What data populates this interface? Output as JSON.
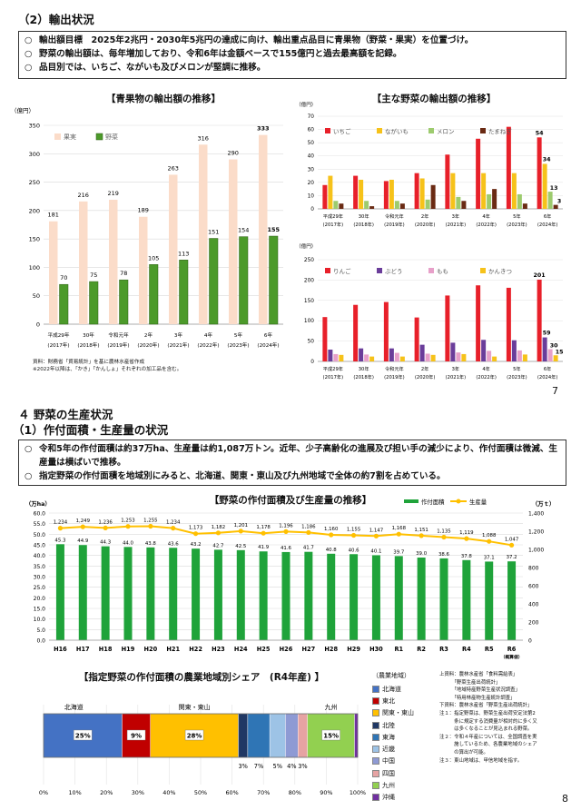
{
  "section2": {
    "title": "（2）輸出状況",
    "bullets": [
      "輸出額目標　2025年2兆円・2030年5兆円の達成に向け、輸出重点品目に青果物（野菜・果実）を位置づけ。",
      "野菜の輸出額は、毎年増加しており、令和6年は金額ベースで155億円と過去最高額を記録。",
      "品目別では、いちご、ながいも及びメロンが堅調に推移。"
    ],
    "bullet_mark": "○"
  },
  "chart1": {
    "title": "【青果物の輸出額の推移】",
    "unit": "（億円）",
    "source_lines": [
      "資料：財務省「貿易統計」を基に農林水産省作成",
      "※2022年以降は、「かき」「かんしょ」それぞれの加工品を含む。"
    ]
  },
  "chart2": {
    "title": "【主な野菜の輸出額の推移】",
    "unit": "（億円）"
  },
  "chart3": {
    "unit": "（億円）"
  },
  "page_numbers": {
    "first": "7",
    "second": "8"
  },
  "section4": {
    "title": "４ 野菜の生産状況",
    "subtitle": "（1）作付面積・生産量の状況",
    "bullets": [
      "令和5年の作付面積は約37万ha、生産量は約1,087万トン。近年、少子高齢化の進展及び担い手の減少により、作付面積は微減、生産量は横ばいで推移。",
      "指定野菜の作付面積を地域別にみると、北海道、関東・東山及び九州地域で全体の約7割を占めている。"
    ],
    "bullet_mark": "○"
  },
  "chart4": {
    "title": "【野菜の作付面積及び生産量の推移】",
    "left_unit": "（万ha）",
    "right_unit": "（万ｔ）",
    "last_label_note": "（概算値）"
  },
  "chart5": {
    "title": "【指定野菜の作付面積の農業地域別シェア　(R4年産) 】",
    "legend_title": "（農業地域）",
    "sources": "上資料：農林水産省「食料需給表」\n　　　「野菜生産出荷統計」\n　　　「地域特産野菜生産状況調査」\n　　　「特用林産物生産統計調査」\n下資料：農林水産省「野菜生産出荷統計」\n注１：指定野菜は、野菜生産出荷安定法第2\n　　　条に規定する消費量が相対的に多く又\n　　　は多くなることが見込まれる野菜。\n注２：令和４年産については、全国調査を実\n　　　施しているため、各農業地域のシェア\n　　　の算出が可能。\n注３：東山地域は、甲信地域を指す。"
  },
  "chart_data": [
    {
      "type": "bar",
      "id": "fruit-veg-export",
      "title": "【青果物の輸出額の推移】",
      "ylabel": "（億円）",
      "ylim": [
        0,
        350
      ],
      "yticks": [
        0,
        50,
        100,
        150,
        200,
        250,
        300,
        350
      ],
      "categories": [
        "平成29年",
        "30年",
        "令和元年",
        "2年",
        "3年",
        "4年",
        "5年",
        "6年"
      ],
      "categories_sub": [
        "(2017年)",
        "(2018年)",
        "(2019年)",
        "(2020年)",
        "(2021年)",
        "(2022年)",
        "(2023年)",
        "(2024年)"
      ],
      "series": [
        {
          "name": "果実",
          "color": "#fbdcc9",
          "values": [
            181,
            216,
            219,
            189,
            263,
            316,
            290,
            333
          ]
        },
        {
          "name": "野菜",
          "color": "#4c9a2a",
          "values": [
            70,
            75,
            78,
            105,
            113,
            151,
            154,
            155
          ]
        }
      ]
    },
    {
      "type": "bar",
      "id": "main-veg-export",
      "title": "【主な野菜の輸出額の推移】",
      "ylabel": "（億円）",
      "ylim": [
        0,
        70
      ],
      "yticks": [
        0,
        10,
        20,
        30,
        40,
        50,
        60,
        70
      ],
      "categories": [
        "平成29年",
        "30年",
        "令和元年",
        "2年",
        "3年",
        "4年",
        "5年",
        "6年"
      ],
      "categories_sub": [
        "(2017年)",
        "(2018年)",
        "(2019年)",
        "(2020年)",
        "(2021年)",
        "(2022年)",
        "(2023年)",
        "(2024年)"
      ],
      "series": [
        {
          "name": "いちご",
          "color": "#e8202a",
          "values": [
            18,
            25,
            21,
            27,
            41,
            53,
            62,
            54
          ]
        },
        {
          "name": "ながいも",
          "color": "#f6c21a",
          "values": [
            25,
            22,
            22,
            23,
            27,
            27,
            27,
            34
          ]
        },
        {
          "name": "メロン",
          "color": "#9dcb6e",
          "values": [
            6,
            6,
            6,
            7,
            9,
            11,
            11,
            13
          ]
        },
        {
          "name": "たまねぎ",
          "color": "#6a2a13",
          "values": [
            4,
            2,
            4,
            18,
            6,
            15,
            4,
            3
          ]
        }
      ],
      "data_labels_last": [
        "54",
        "34",
        "13",
        "3"
      ]
    },
    {
      "type": "bar",
      "id": "main-veg-export-2",
      "ylabel": "（億円）",
      "ylim": [
        0,
        250
      ],
      "yticks": [
        0,
        50,
        100,
        150,
        200,
        250
      ],
      "categories": [
        "平成29年",
        "30年",
        "令和元年",
        "2年",
        "3年",
        "4年",
        "5年",
        "6年"
      ],
      "categories_sub": [
        "(2017年)",
        "(2018年)",
        "(2019年)",
        "(2020年)",
        "(2021年)",
        "(2022年)",
        "(2023年)",
        "(2024年)"
      ],
      "series": [
        {
          "name": "りんご",
          "color": "#e8202a",
          "values": [
            109,
            139,
            146,
            108,
            162,
            187,
            181,
            201
          ]
        },
        {
          "name": "ぶどう",
          "color": "#6a3d9a",
          "values": [
            29,
            32,
            32,
            41,
            46,
            53,
            52,
            59
          ]
        },
        {
          "name": "もも",
          "color": "#e7a0c9",
          "values": [
            18,
            17,
            21,
            19,
            22,
            26,
            27,
            30
          ]
        },
        {
          "name": "かんきつ",
          "color": "#f6c21a",
          "values": [
            16,
            12,
            12,
            16,
            18,
            12,
            17,
            15
          ]
        }
      ],
      "data_labels_last": [
        "201",
        "59",
        "30",
        "15"
      ]
    },
    {
      "type": "bar",
      "id": "area-production",
      "title": "【野菜の作付面積及び生産量の推移】",
      "categories": [
        "H16",
        "H17",
        "H18",
        "H19",
        "H20",
        "H21",
        "H22",
        "H23",
        "H24",
        "H25",
        "H26",
        "H27",
        "H28",
        "H29",
        "H30",
        "R1",
        "R2",
        "R3",
        "R4",
        "R5",
        "R6"
      ],
      "series": [
        {
          "name": "作付面積",
          "color": "#1fa33a",
          "axis": "left",
          "values": [
            45.3,
            44.9,
            44.3,
            44.0,
            43.8,
            43.6,
            43.2,
            42.7,
            42.5,
            41.9,
            41.6,
            41.7,
            40.8,
            40.6,
            40.1,
            39.7,
            39.0,
            38.6,
            37.8,
            37.1,
            37.2
          ]
        },
        {
          "name": "生産量",
          "color": "#ffc000",
          "axis": "right",
          "type": "line",
          "values": [
            1234,
            1249,
            1236,
            1253,
            1255,
            1234,
            1173,
            1182,
            1201,
            1178,
            1196,
            1186,
            1160,
            1155,
            1147,
            1168,
            1151,
            1135,
            1119,
            1088,
            1047
          ]
        }
      ],
      "area_labels": [
        "45.3",
        "44.9",
        "44.3",
        "44.0",
        "43.8",
        "43.6",
        "43.2",
        "42.7",
        "42.5",
        "41.9",
        "41.6",
        "41.7",
        "40.8",
        "40.6",
        "40.1",
        "39.7",
        "39.0",
        "38.6",
        "37.8",
        "37.1",
        "37.2"
      ],
      "production_labels": [
        "1,234",
        "1,249",
        "1,236",
        "1,253",
        "1,255",
        "1,234",
        "1,173",
        "1,182",
        "1,201",
        "1,178",
        "1,196",
        "1,186",
        "1,160",
        "1,155",
        "1,147",
        "1,168",
        "1,151",
        "1,135",
        "1,119",
        "1,088",
        "1,047"
      ],
      "ylim_left": [
        0,
        60
      ],
      "yticks_left": [
        "0.0",
        "5.0",
        "10.0",
        "15.0",
        "20.0",
        "25.0",
        "30.0",
        "35.0",
        "40.0",
        "45.0",
        "50.0",
        "55.0",
        "60.0"
      ],
      "ylim_right": [
        0,
        1400
      ],
      "yticks_right": [
        "0",
        "200",
        "400",
        "600",
        "800",
        "1,000",
        "1,200",
        "1,400"
      ]
    },
    {
      "type": "bar",
      "id": "regional-share",
      "stacked": true,
      "title": "【指定野菜の作付面積の農業地域別シェア　(R4年産) 】",
      "series": [
        {
          "name": "北海道",
          "color": "#4472c4",
          "value": 25
        },
        {
          "name": "東北",
          "color": "#c00000",
          "value": 9
        },
        {
          "name": "関東・東山",
          "color": "#ffc000",
          "value": 28
        },
        {
          "name": "北陸",
          "color": "#203864",
          "value": 3
        },
        {
          "name": "東海",
          "color": "#2f75b5",
          "value": 7
        },
        {
          "name": "近畿",
          "color": "#9dc3e6",
          "value": 5
        },
        {
          "name": "中国",
          "color": "#8e9ad4",
          "value": 4
        },
        {
          "name": "四国",
          "color": "#e6a3a3",
          "value": 3
        },
        {
          "name": "九州",
          "color": "#92d050",
          "value": 15
        },
        {
          "name": "沖縄",
          "color": "#7030a0",
          "value": 1
        }
      ],
      "bar_labels": [
        "25%",
        "9%",
        "28%",
        "15%"
      ],
      "below_labels": [
        "3%",
        "7%",
        "5%",
        "4%",
        "3%"
      ],
      "top_labels": [
        "北海道",
        "関東・東山",
        "九州"
      ],
      "xticks": [
        "0%",
        "10%",
        "20%",
        "30%",
        "40%",
        "50%",
        "60%",
        "70%",
        "80%",
        "90%",
        "100%"
      ]
    }
  ]
}
